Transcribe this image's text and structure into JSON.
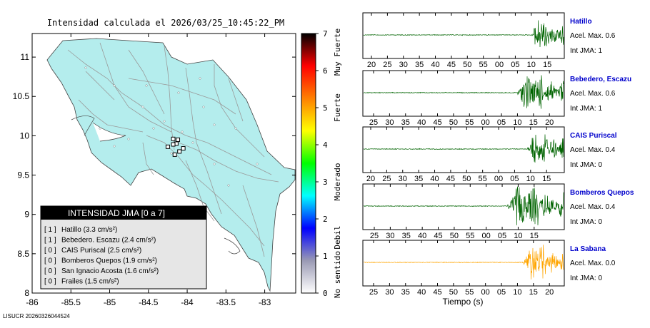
{
  "map": {
    "title": "Intensidad calculada el 2026/03/25_10:45:22_PM",
    "x_ticks": [
      "-86",
      "-85.5",
      "-85",
      "-84.5",
      "-84",
      "-83.5",
      "-83"
    ],
    "x_values": [
      -86,
      -85.5,
      -85,
      -84.5,
      -84,
      -83.5,
      -83
    ],
    "y_ticks": [
      "11",
      "10.5",
      "10",
      "9.5",
      "9",
      "8.5",
      "8"
    ],
    "y_values": [
      11,
      10.5,
      10,
      9.5,
      9,
      8.5,
      8
    ],
    "xlim": [
      -86,
      -82.6
    ],
    "ylim": [
      8,
      11.3
    ],
    "land_color": "#b4eded",
    "stations": [
      {
        "lon": -84.18,
        "lat": 9.96
      },
      {
        "lon": -84.12,
        "lat": 9.95
      },
      {
        "lon": -84.14,
        "lat": 9.9
      },
      {
        "lon": -84.18,
        "lat": 9.89
      },
      {
        "lon": -84.25,
        "lat": 9.86
      },
      {
        "lon": -84.05,
        "lat": 9.84
      },
      {
        "lon": -84.1,
        "lat": 9.8
      },
      {
        "lon": -84.16,
        "lat": 9.76
      }
    ]
  },
  "legend": {
    "title": "INTENSIDAD JMA [0 a 7]",
    "items": [
      {
        "level": "[ 1 ]",
        "label": "Hatillo (3.3 cm/s²)"
      },
      {
        "level": "[ 1 ]",
        "label": "Bebedero. Escazu (2.4 cm/s²)"
      },
      {
        "level": "[ 0 ]",
        "label": "CAIS Puriscal (2.5 cm/s²)"
      },
      {
        "level": "[ 0 ]",
        "label": "Bomberos Quepos (1.9 cm/s²)"
      },
      {
        "level": "[ 0 ]",
        "label": "San Ignacio Acosta (1.6 cm/s²)"
      },
      {
        "level": "[ 0 ]",
        "label": "Frailes (1.5 cm/s²)"
      }
    ]
  },
  "colorbar": {
    "ticks": [
      "0",
      "1",
      "2",
      "3",
      "4",
      "5",
      "6",
      "7"
    ],
    "labels": [
      "No sentido",
      "Debil",
      "Moderado",
      "Fuerte",
      "Muy Fuerte"
    ],
    "colors": [
      "#ffffff",
      "#9a9ab4",
      "#0000ff",
      "#00ffff",
      "#00ff00",
      "#ffff00",
      "#ff8000",
      "#ff0000",
      "#000000"
    ]
  },
  "footer": "LISUCR 20260326044524",
  "chart_data": [
    {
      "type": "line",
      "name": "Hatillo",
      "accel_label": "Acel. Max. 0.6",
      "int_label": "Int JMA: 1",
      "x_ticks": [
        "20",
        "25",
        "30",
        "35",
        "40",
        "45",
        "50",
        "55",
        "00",
        "05",
        "10",
        "15"
      ],
      "first_tick_offset": 2.0,
      "burst_start": 0.84,
      "peak": 0.82,
      "color": "#006400"
    },
    {
      "type": "line",
      "name": "Bebedero, Escazu",
      "accel_label": "Acel. Max. 0.6",
      "int_label": "Int JMA: 1",
      "x_ticks": [
        "25",
        "30",
        "35",
        "40",
        "45",
        "50",
        "55",
        "00",
        "05",
        "10",
        "15",
        "20"
      ],
      "first_tick_offset": 5.0,
      "burst_start": 0.77,
      "peak": 0.85,
      "color": "#006400"
    },
    {
      "type": "line",
      "name": "CAIS Puriscal",
      "accel_label": "Acel. Max. 0.4",
      "int_label": "Int JMA: 0",
      "x_ticks": [
        "20",
        "25",
        "30",
        "35",
        "40",
        "45",
        "50",
        "55",
        "00",
        "05",
        "10",
        "15"
      ],
      "first_tick_offset": 1.0,
      "burst_start": 0.82,
      "peak": 0.75,
      "color": "#006400"
    },
    {
      "type": "line",
      "name": "Bomberos Quepos",
      "accel_label": "Acel. Max. 0.4",
      "int_label": "Int JMA: 0",
      "x_ticks": [
        "25",
        "30",
        "35",
        "40",
        "45",
        "50",
        "55",
        "00",
        "05",
        "10",
        "15"
      ],
      "first_tick_offset": 6.0,
      "burst_start": 0.72,
      "peak": 0.95,
      "color": "#006400"
    },
    {
      "type": "line",
      "name": "La Sabana",
      "accel_label": "Acel. Max. 0.0",
      "int_label": "Int JMA: 0",
      "x_ticks": [
        "25",
        "30",
        "35",
        "40",
        "45",
        "50",
        "55",
        "00",
        "05",
        "10",
        "15",
        "20"
      ],
      "first_tick_offset": 5.0,
      "burst_start": 0.8,
      "peak": 0.9,
      "color": "#ffa500"
    }
  ],
  "waveform_xlabel": "Tiempo (s)"
}
